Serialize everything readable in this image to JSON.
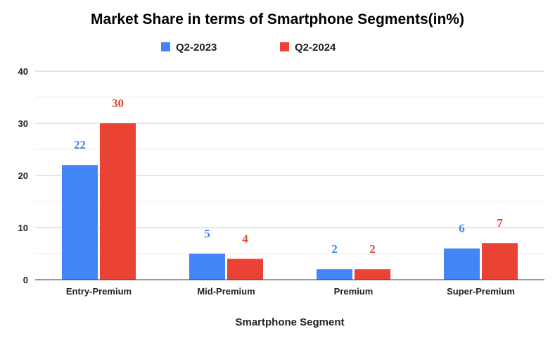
{
  "chart_data": {
    "type": "bar",
    "title": "Market Share in terms of Smartphone Segments(in%)",
    "xlabel": "Smartphone Segment",
    "ylabel": "",
    "ylim": [
      0,
      40
    ],
    "yticks": [
      0,
      10,
      20,
      30,
      40
    ],
    "minor_grid": true,
    "legend_position": "top",
    "categories": [
      "Entry-Premium",
      "Mid-Premium",
      "Premium",
      "Super-Premium"
    ],
    "series": [
      {
        "name": "Q2-2023",
        "values": [
          22,
          5,
          2,
          6
        ],
        "color": "#4285F4"
      },
      {
        "name": "Q2-2024",
        "values": [
          30,
          4,
          2,
          7
        ],
        "color": "#EA4335"
      }
    ]
  }
}
